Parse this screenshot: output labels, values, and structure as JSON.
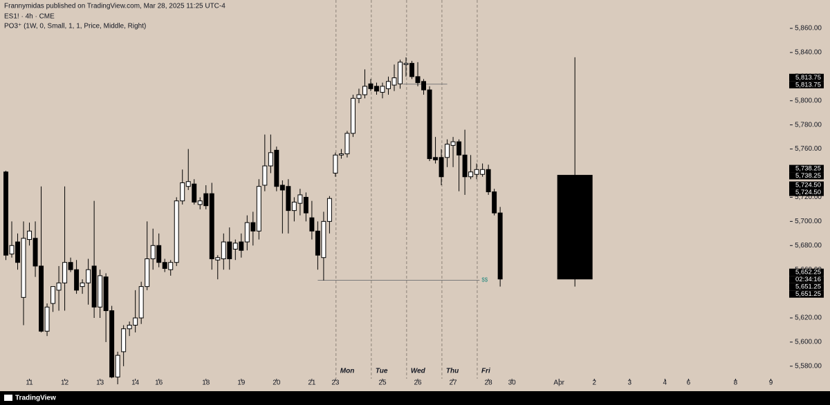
{
  "header": {
    "publisher": "Frannymidas published on TradingView.com, Mar 28, 2025 11:25 UTC-4"
  },
  "footer": {
    "brand": "TradingView"
  },
  "chart_data": {
    "type": "candlestick",
    "title": "ES1! · 4h · CME",
    "indicator": "PO3⁺ (1W, 0, Small, 1, 1, Price, Middle, Right)",
    "open": [
      5741,
      5673,
      5683,
      5637,
      5685,
      5686,
      5663,
      5609,
      5632,
      5643,
      5649,
      5666,
      5660,
      5646,
      5649,
      5663,
      5629,
      5654,
      5626,
      5571,
      5592,
      5611,
      5614,
      5620,
      5646,
      5669,
      5680,
      5666,
      5660,
      5666,
      5717,
      5729,
      5731,
      5714,
      5723,
      5723,
      5668,
      5669,
      5683,
      5677,
      5683,
      5683,
      5699,
      5692,
      5730,
      5746,
      5759,
      5730,
      5729,
      5709,
      5715,
      5720,
      5703,
      5692,
      5670,
      5700,
      5740,
      5755,
      5756,
      5773,
      5802,
      5805,
      5814,
      5812,
      5807,
      5810,
      5813,
      5814,
      5830,
      5831,
      5820,
      5816,
      5809,
      5753,
      5753,
      5753,
      5763,
      5766,
      5755,
      5737,
      5739,
      5739,
      5743,
      5724.5,
      5707
    ],
    "high": [
      5742,
      5700,
      5690,
      5700,
      5699,
      5700,
      5729,
      5632,
      5646,
      5663,
      5729,
      5670,
      5668,
      5652,
      5669,
      5717,
      5660,
      5657,
      5630,
      5592,
      5614,
      5617,
      5643,
      5650,
      5700,
      5694,
      5690,
      5669,
      5668,
      5720,
      5743,
      5760,
      5735,
      5720,
      5730,
      5732,
      5672,
      5690,
      5695,
      5685,
      5690,
      5705,
      5708,
      5735,
      5772,
      5772,
      5762,
      5734,
      5735,
      5720,
      5727,
      5724,
      5717,
      5700,
      5708,
      5721,
      5757,
      5760,
      5775,
      5805,
      5810,
      5826,
      5818,
      5815,
      5815,
      5820,
      5830,
      5834,
      5836,
      5833,
      5832,
      5818,
      5812,
      5770,
      5760,
      5768,
      5770,
      5768,
      5776,
      5755,
      5748,
      5748,
      5747,
      5727,
      5712
    ],
    "low": [
      5668,
      5670,
      5660,
      5614,
      5680,
      5654,
      5608,
      5605,
      5625,
      5626,
      5626,
      5658,
      5640,
      5640,
      5631,
      5620,
      5620,
      5600,
      5570,
      5565,
      5580,
      5605,
      5608,
      5615,
      5643,
      5660,
      5662,
      5658,
      5655,
      5663,
      5714,
      5726,
      5714,
      5710,
      5710,
      5660,
      5652,
      5660,
      5660,
      5668,
      5670,
      5676,
      5680,
      5685,
      5725,
      5740,
      5725,
      5690,
      5690,
      5700,
      5705,
      5700,
      5685,
      5660,
      5651,
      5690,
      5737,
      5752,
      5753,
      5770,
      5798,
      5802,
      5808,
      5805,
      5802,
      5805,
      5808,
      5810,
      5820,
      5818,
      5812,
      5805,
      5750,
      5748,
      5730,
      5745,
      5745,
      5725,
      5722,
      5735,
      5735,
      5737,
      5722,
      5705,
      5646
    ],
    "close": [
      5672,
      5680,
      5666,
      5686,
      5692,
      5663,
      5609,
      5629,
      5646,
      5649,
      5666,
      5660,
      5643,
      5649,
      5660,
      5629,
      5655,
      5626,
      5571,
      5589,
      5611,
      5614,
      5620,
      5646,
      5669,
      5680,
      5666,
      5661,
      5666,
      5717,
      5732,
      5733,
      5716,
      5717,
      5713,
      5669,
      5670,
      5683,
      5669,
      5682,
      5676,
      5699,
      5692,
      5729,
      5746,
      5757,
      5729,
      5726,
      5709,
      5716,
      5722,
      5707,
      5692,
      5672,
      5700,
      5719,
      5755,
      5756,
      5773,
      5802,
      5805,
      5812,
      5810,
      5808,
      5812,
      5816,
      5819,
      5832,
      5831,
      5820,
      5815,
      5809,
      5752,
      5751,
      5737,
      5764,
      5766,
      5755,
      5737,
      5741,
      5743,
      5743,
      5724.5,
      5707,
      5652.25
    ],
    "po3": {
      "open": 5738.25,
      "high": 5836,
      "low": 5646,
      "close": 5652.25
    },
    "levels": [
      {
        "value": 5813.75
      },
      {
        "value": 5651.25,
        "label": "$$"
      }
    ],
    "sessions": [
      "Mon",
      "Tue",
      "Wed",
      "Thu",
      "Fri"
    ],
    "price_tags": [
      {
        "value": 5813.75,
        "labels": [
          "5,813.75",
          "5,813.75"
        ]
      },
      {
        "value": 5738.25,
        "labels": [
          "5,738.25",
          "5,738.25"
        ]
      },
      {
        "value": 5724.5,
        "labels": [
          "5,724.50",
          "5,724.50"
        ]
      },
      {
        "value": 5652.25,
        "labels": [
          "5,652.25",
          "02:34:16"
        ]
      },
      {
        "value": 5651.25,
        "labels": [
          "5,651.25",
          "5,651.25"
        ]
      }
    ],
    "xlim": [
      -1,
      133
    ],
    "xticks": [
      {
        "value": 4,
        "label": "11"
      },
      {
        "value": 10,
        "label": "12"
      },
      {
        "value": 16,
        "label": "13"
      },
      {
        "value": 22,
        "label": "14"
      },
      {
        "value": 26,
        "label": "16"
      },
      {
        "value": 34,
        "label": "18"
      },
      {
        "value": 40,
        "label": "19"
      },
      {
        "value": 46,
        "label": "20"
      },
      {
        "value": 52,
        "label": "21"
      },
      {
        "value": 56,
        "label": "23"
      },
      {
        "value": 64,
        "label": "25"
      },
      {
        "value": 70,
        "label": "26"
      },
      {
        "value": 76,
        "label": "27"
      },
      {
        "value": 82,
        "label": "28"
      },
      {
        "value": 86,
        "label": "30"
      },
      {
        "value": 94,
        "label": "Apr"
      },
      {
        "value": 100,
        "label": "2"
      },
      {
        "value": 106,
        "label": "3"
      },
      {
        "value": 112,
        "label": "4"
      },
      {
        "value": 116,
        "label": "6"
      },
      {
        "value": 124,
        "label": "8"
      },
      {
        "value": 130,
        "label": "9"
      }
    ],
    "ylim": [
      5569.6,
      5883.5
    ],
    "yticks": [
      {
        "value": 5580,
        "label": "5,580.00"
      },
      {
        "value": 5600,
        "label": "5,600.00"
      },
      {
        "value": 5620,
        "label": "5,620.00"
      },
      {
        "value": 5640,
        "label": "5,640.00"
      },
      {
        "value": 5660,
        "label": "5,660.00"
      },
      {
        "value": 5680,
        "label": "5,680.00"
      },
      {
        "value": 5700,
        "label": "5,700.00"
      },
      {
        "value": 5720,
        "label": "5,720.00"
      },
      {
        "value": 5740,
        "label": "5,740.00"
      },
      {
        "value": 5760,
        "label": "5,760.00"
      },
      {
        "value": 5780,
        "label": "5,780.00"
      },
      {
        "value": 5800,
        "label": "5,800.00"
      },
      {
        "value": 5820,
        "label": "5,820.00"
      },
      {
        "value": 5840,
        "label": "5,840.00"
      },
      {
        "value": 5860,
        "label": "5,860.00"
      }
    ],
    "colors": {
      "background": "#d9cbbd",
      "up": "#ffffff",
      "down": "#000000",
      "outline": "#000000",
      "level": "#7a7a7a",
      "level_label": "#2a8a80",
      "separator": "#8c8278"
    }
  }
}
